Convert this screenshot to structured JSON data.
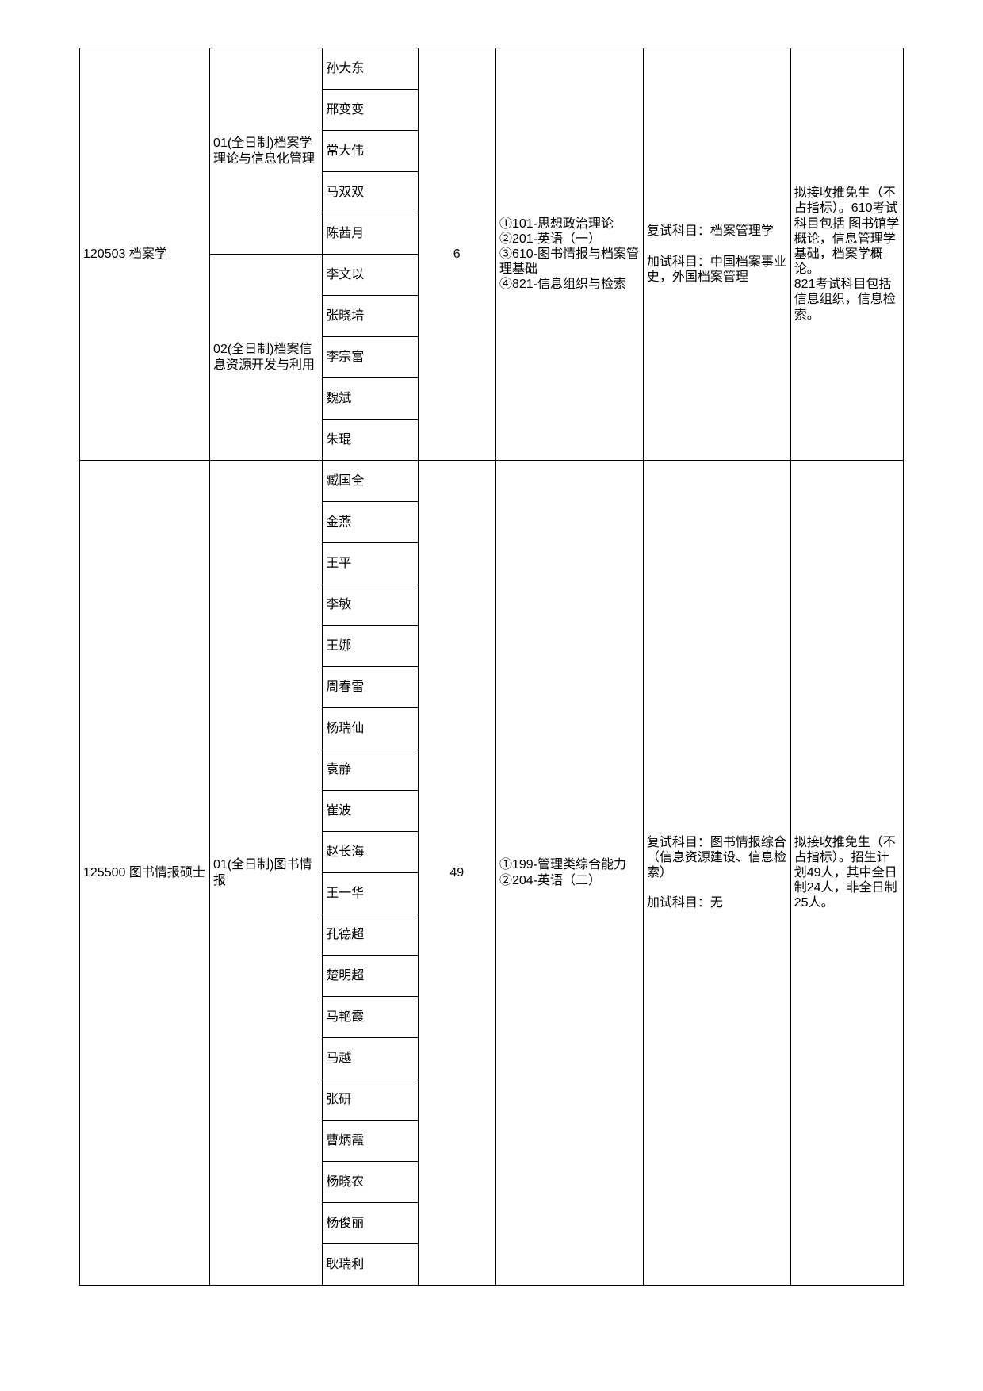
{
  "section1": {
    "code": "120503 档案学",
    "dir1": "01(全日制)档案学理论与信息化管理",
    "dir2": "02(全日制)档案信息资源开发与利用",
    "names1": [
      "孙大东",
      "邢变变",
      "常大伟",
      "马双双",
      "陈茜月"
    ],
    "names2": [
      "李文以",
      "张晓培",
      "李宗富",
      "魏斌",
      "朱琨"
    ],
    "num": "6",
    "exam": "①101-思想政治理论\n②201-英语（一）\n③610-图书情报与档案管理基础\n④821-信息组织与检索",
    "retest": "复试科目：档案管理学\n\n加试科目：中国档案事业史，外国档案管理",
    "note": "拟接收推免生（不占指标）。610考试科目包括 图书馆学概论，信息管理学基础，档案学概论。\n821考试科目包括信息组织，信息检索。"
  },
  "section2": {
    "code": "125500 图书情报硕士",
    "dir1": "01(全日制)图书情报",
    "names": [
      "臧国全",
      "金燕",
      "王平",
      "李敏",
      "王娜",
      "周春雷",
      "杨瑞仙",
      "袁静",
      "崔波",
      "赵长海",
      "王一华",
      "孔德超",
      "楚明超",
      "马艳霞",
      "马越",
      "张研",
      "曹炳霞",
      "杨晓农",
      "杨俊丽",
      "耿瑞利"
    ],
    "num": "49",
    "exam": "①199-管理类综合能力\n②204-英语（二）",
    "retest": "复试科目：图书情报综合（信息资源建设、信息检索）\n\n加试科目：无",
    "note": "拟接收推免生（不占指标）。招生计划49人，其中全日制24人，非全日制25人。"
  }
}
